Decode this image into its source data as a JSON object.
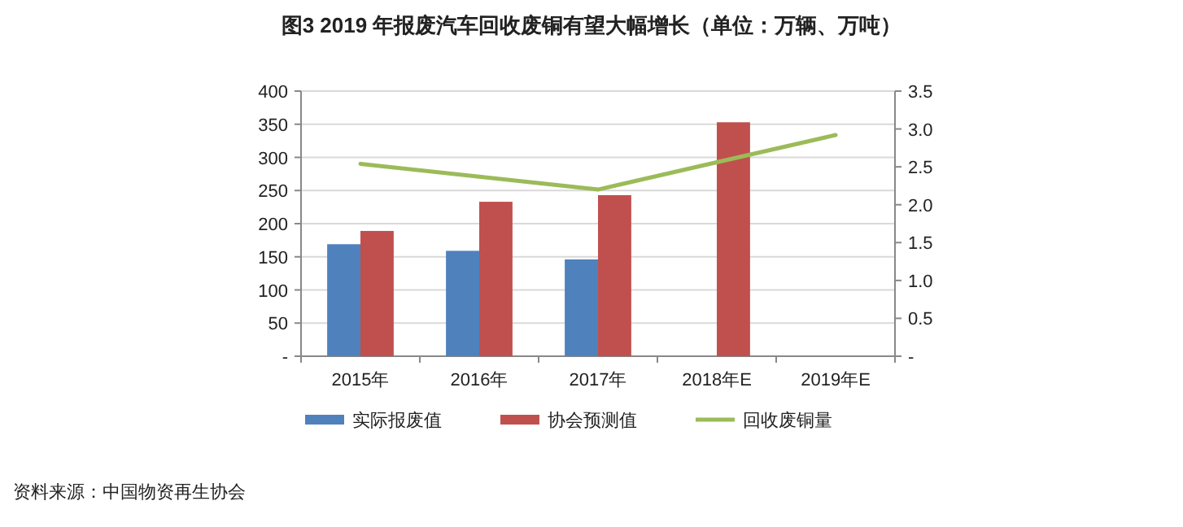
{
  "chart_data": {
    "type": "bar",
    "title": "图3    2019 年报废汽车回收废铜有望大幅增长（单位：万辆、万吨）",
    "categories": [
      "2015年",
      "2016年",
      "2017年",
      "2018年E",
      "2019年E"
    ],
    "series": [
      {
        "name": "实际报废值",
        "color": "#4f81bd",
        "values": [
          169,
          159,
          146,
          null,
          null
        ]
      },
      {
        "name": "协会预测值",
        "color": "#c0504d",
        "values": [
          189,
          233,
          243,
          353,
          null
        ]
      },
      {
        "name": "回收废铜量",
        "type": "line",
        "axis": "y2",
        "color": "#9bbb59",
        "values": [
          2.54,
          2.37,
          2.2,
          2.56,
          2.92
        ]
      }
    ],
    "ylim": [
      0,
      400
    ],
    "yticks": [
      {
        "value": 0,
        "label": "-"
      },
      50,
      100,
      150,
      200,
      250,
      300,
      350,
      400
    ],
    "y2lim": [
      0,
      3.5
    ],
    "y2ticks": [
      {
        "value": 0,
        "label": "-"
      },
      0.5,
      {
        "value": 1,
        "label": "1.0"
      },
      1.5,
      {
        "value": 2,
        "label": "2.0"
      },
      2.5,
      {
        "value": 3,
        "label": "3.0"
      },
      3.5
    ],
    "grid": "y",
    "legend": "bottom",
    "marker": "none",
    "line_style": "solid",
    "annotations": [
      "资料来源：中国物资再生协会"
    ]
  }
}
